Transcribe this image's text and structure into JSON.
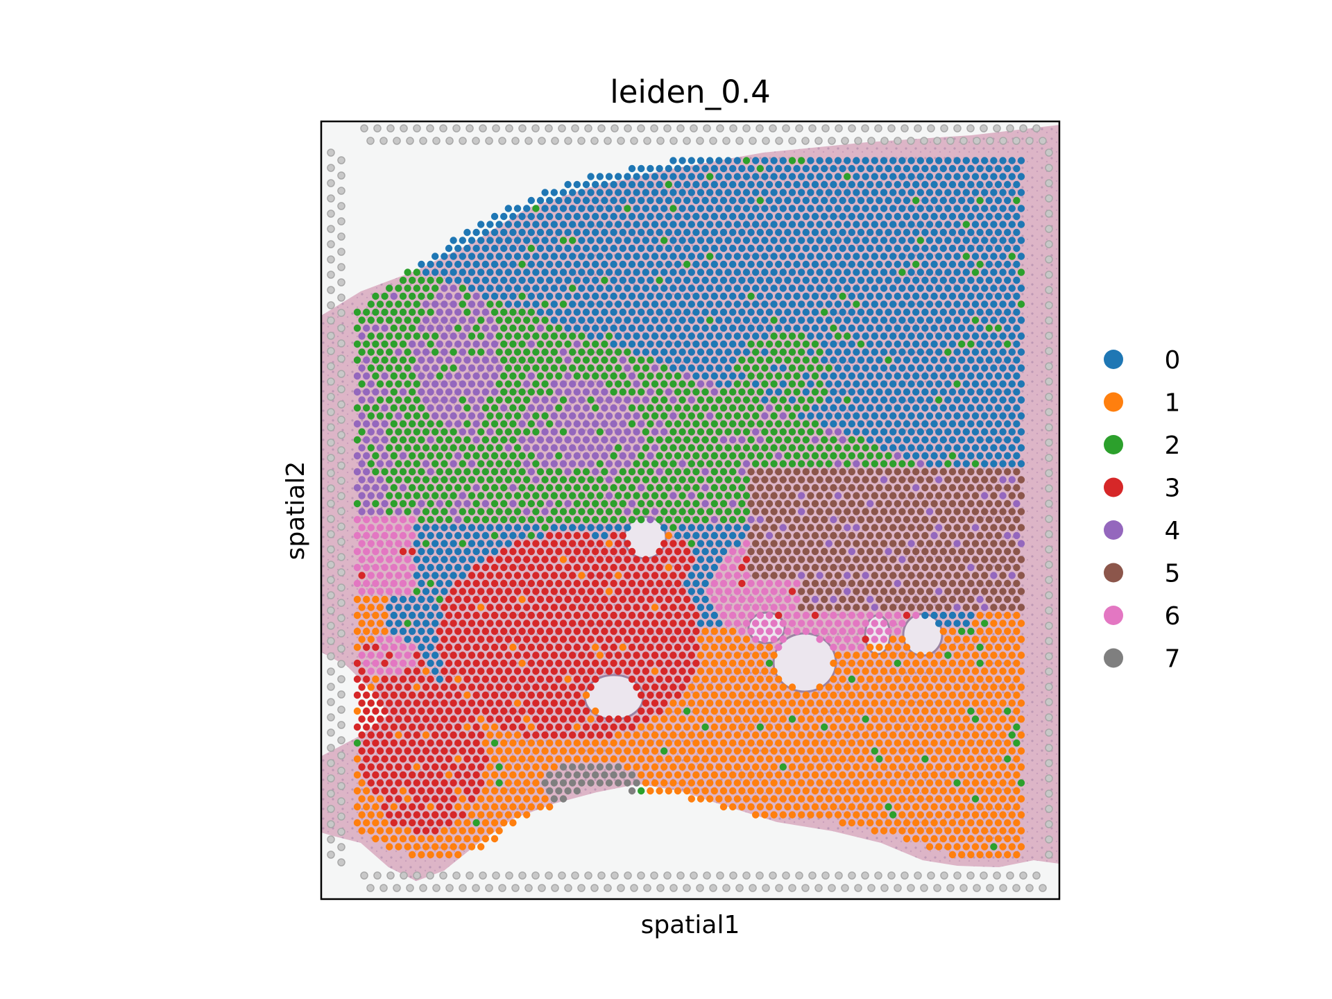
{
  "chart_data": {
    "type": "scatter",
    "subtype": "spatial",
    "title": "leiden_0.4",
    "xlabel": "spatial1",
    "ylabel": "spatial2",
    "xticks": [],
    "yticks": [],
    "grid": false,
    "legend_position": "right",
    "background": "H&E tissue image",
    "series": [
      {
        "name": "0",
        "color": "#1f77b4"
      },
      {
        "name": "1",
        "color": "#ff7f0e"
      },
      {
        "name": "2",
        "color": "#2ca02c"
      },
      {
        "name": "3",
        "color": "#d62728"
      },
      {
        "name": "4",
        "color": "#9467bd"
      },
      {
        "name": "5",
        "color": "#8c564b"
      },
      {
        "name": "6",
        "color": "#e377c2"
      },
      {
        "name": "7",
        "color": "#7f7f7f"
      }
    ]
  }
}
